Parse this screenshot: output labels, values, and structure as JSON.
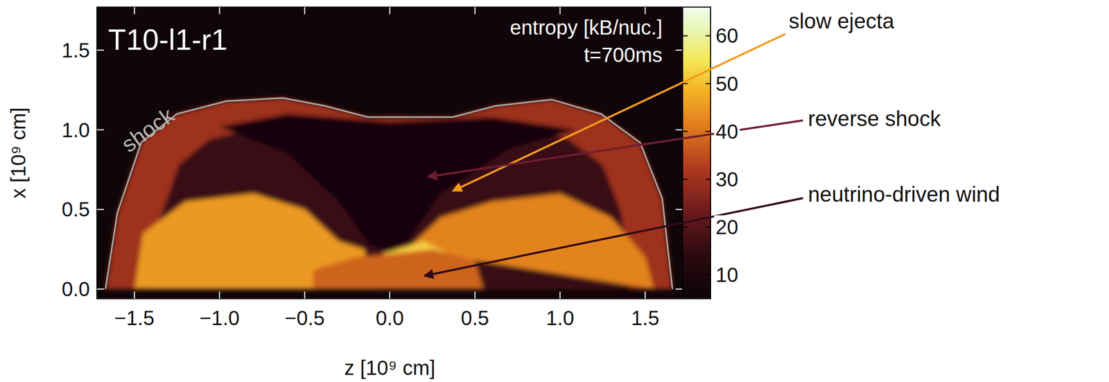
{
  "chart_data": {
    "type": "heatmap",
    "title": "T10-l1-r1",
    "subtitle": "t=700ms",
    "xlabel": "z [10⁹ cm]",
    "ylabel": "x [10⁹ cm]",
    "xlim": [
      -1.72,
      1.72
    ],
    "ylim": [
      -0.06,
      1.77
    ],
    "xticks": [
      {
        "value": -1.5,
        "label": "−1.5"
      },
      {
        "value": -1.0,
        "label": "−1.0"
      },
      {
        "value": -0.5,
        "label": "−0.5"
      },
      {
        "value": 0,
        "label": "0.0"
      },
      {
        "value": 0.5,
        "label": "0.5"
      },
      {
        "value": 1.0,
        "label": "1.0"
      },
      {
        "value": 1.5,
        "label": "1.5"
      }
    ],
    "yticks": [
      {
        "value": 0,
        "label": "0.0"
      },
      {
        "value": 0.5,
        "label": "0.5"
      },
      {
        "value": 1.0,
        "label": "1.0"
      },
      {
        "value": 1.5,
        "label": "1.5"
      }
    ],
    "colorbar": {
      "label": "entropy [kB/nuc.]",
      "range": [
        5,
        66
      ],
      "ticks": [
        10,
        20,
        30,
        40,
        50,
        60
      ]
    },
    "background_entropy": 6,
    "regions": [
      {
        "entropy": 30,
        "z": [
          -1.67,
          -1.6,
          -1.46,
          -1.25,
          -0.96,
          -0.63,
          -0.38,
          -0.13,
          0.12,
          0.37,
          0.62,
          0.95,
          1.24,
          1.47,
          1.6,
          1.66
        ],
        "x": [
          0,
          0.48,
          0.92,
          1.1,
          1.18,
          1.2,
          1.15,
          1.08,
          1.08,
          1.08,
          1.15,
          1.19,
          1.1,
          0.92,
          0.57,
          0
        ]
      },
      {
        "entropy": 16,
        "z": [
          -1.42,
          -1.36,
          -1.24,
          -1.06,
          -0.82,
          -0.54,
          -0.32,
          -0.11,
          0.1,
          0.31,
          0.53,
          0.81,
          1.05,
          1.25,
          1.36,
          1.41
        ],
        "x": [
          0,
          0.41,
          0.78,
          0.94,
          1.0,
          1.02,
          0.98,
          0.92,
          0.92,
          0.92,
          0.98,
          1.01,
          0.94,
          0.78,
          0.48,
          0
        ]
      },
      {
        "entropy": 8,
        "z": [
          -1.0,
          -0.6,
          -0.3,
          -0.12,
          0,
          0.1,
          0.3,
          0.7,
          1.1,
          0.6,
          0,
          -0.6
        ],
        "x": [
          1.02,
          0.85,
          0.55,
          0.28,
          0.24,
          0.3,
          0.6,
          0.88,
          1.0,
          1.08,
          1.05,
          1.1
        ]
      },
      {
        "entropy": 45,
        "z": [
          -1.5,
          -1.45,
          -1.2,
          -0.8,
          -0.5,
          -0.3,
          -0.15,
          -0.1
        ],
        "x": [
          0,
          0.35,
          0.55,
          0.6,
          0.5,
          0.3,
          0.25,
          0
        ]
      },
      {
        "entropy": 42,
        "z": [
          0.1,
          0.3,
          0.6,
          1.0,
          1.3,
          1.5,
          1.55
        ],
        "x": [
          0.25,
          0.45,
          0.55,
          0.6,
          0.45,
          0.2,
          0
        ]
      },
      {
        "entropy": 52,
        "z": [
          -0.05,
          0.2,
          0.35,
          0.2
        ],
        "x": [
          0.22,
          0.3,
          0.22,
          0.15
        ]
      },
      {
        "entropy": 38,
        "z": [
          -0.45,
          -0.45,
          -0.2,
          0,
          0.25,
          0.5,
          0.55
        ],
        "x": [
          0,
          0.12,
          0.2,
          0.22,
          0.25,
          0.18,
          0
        ]
      }
    ],
    "shock": {
      "label": "shock",
      "z": [
        -1.67,
        -1.6,
        -1.46,
        -1.25,
        -0.96,
        -0.63,
        -0.38,
        -0.13,
        0.12,
        0.37,
        0.62,
        0.95,
        1.24,
        1.47,
        1.6,
        1.66
      ],
      "x": [
        0,
        0.48,
        0.92,
        1.1,
        1.18,
        1.2,
        1.15,
        1.08,
        1.08,
        1.08,
        1.15,
        1.19,
        1.1,
        0.92,
        0.57,
        0
      ]
    },
    "annotations": [
      "slow ejecta",
      "reverse shock",
      "neutrino-driven wind"
    ]
  }
}
